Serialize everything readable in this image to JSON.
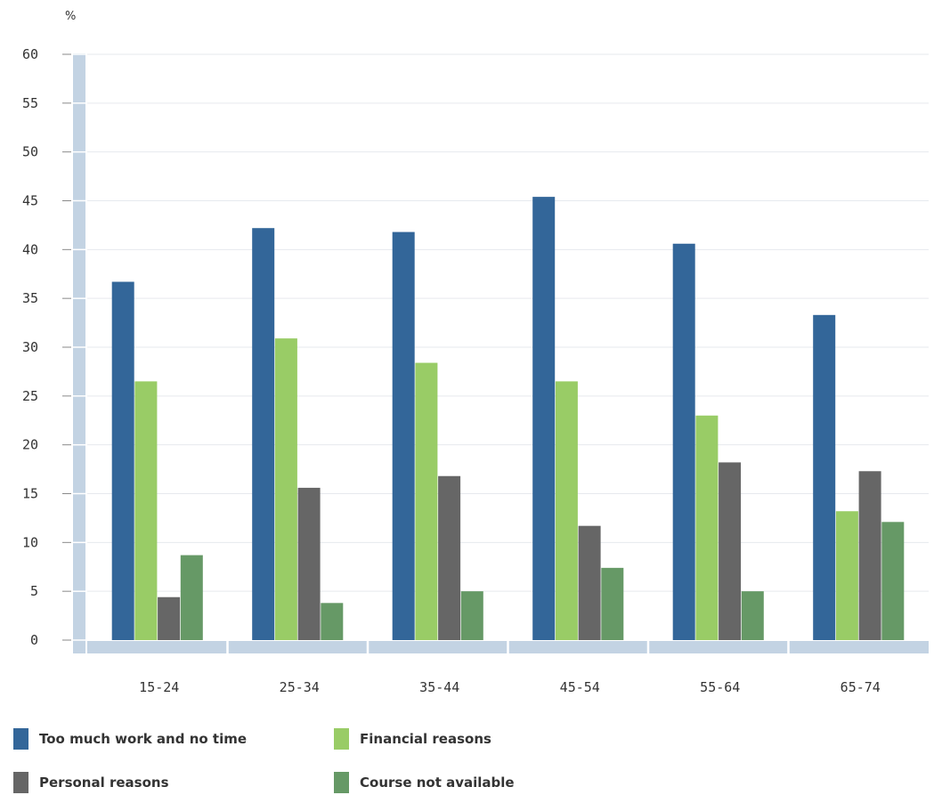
{
  "chart_data": {
    "type": "bar",
    "y_unit": "%",
    "categories": [
      "15-24",
      "25-34",
      "35-44",
      "45-54",
      "55-64",
      "65-74"
    ],
    "y_ticks": [
      "0",
      "5",
      "10",
      "15",
      "20",
      "25",
      "30",
      "35",
      "40",
      "45",
      "50",
      "55",
      "60"
    ],
    "ylim": [
      0,
      60
    ],
    "grid": true,
    "legend_position": "bottom",
    "series": [
      {
        "name": "Too much work and no time",
        "color": "#336699",
        "values": [
          36.7,
          42.2,
          41.8,
          45.4,
          40.6,
          33.3
        ]
      },
      {
        "name": "Financial reasons",
        "color": "#99cc66",
        "values": [
          26.5,
          30.9,
          28.4,
          26.5,
          23.0,
          13.2
        ]
      },
      {
        "name": "Personal reasons",
        "color": "#666666",
        "values": [
          4.4,
          15.6,
          16.8,
          11.7,
          18.2,
          17.3
        ]
      },
      {
        "name": "Course not available",
        "color": "#669966",
        "values": [
          8.7,
          3.8,
          5.0,
          7.4,
          5.0,
          12.1
        ]
      }
    ]
  }
}
